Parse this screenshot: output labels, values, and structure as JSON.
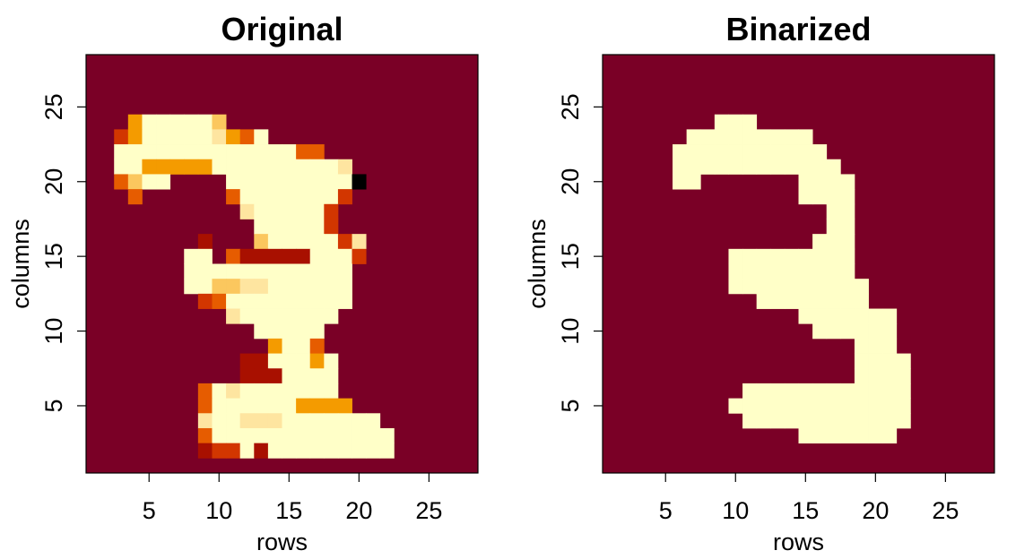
{
  "chart_data": [
    {
      "type": "heatmap",
      "title": "Original",
      "xlabel": "rows",
      "ylabel": "columns",
      "xlim": [
        0.5,
        28.5
      ],
      "ylim": [
        0.5,
        28.5
      ],
      "xticks": [
        "5",
        "10",
        "15",
        "20",
        "25"
      ],
      "yticks": [
        "5",
        "10",
        "15",
        "20",
        "25"
      ],
      "xtick_values": [
        5,
        10,
        15,
        20,
        25
      ],
      "ytick_values": [
        5,
        10,
        15,
        20,
        25
      ],
      "background_color": "#7a0026",
      "color_scale": [
        "#7a0026",
        "#a81000",
        "#d23600",
        "#e65c00",
        "#f49b00",
        "#fbc75e",
        "#fee5a0",
        "#ffffc8"
      ],
      "levels_top_row_first": [
        "",
        "",
        "",
        "   4777775",
        "  24777776437",
        "  777777777777733",
        "  77444447777777776",
        "  3577    7777777778",
        "   3      377777772",
        "           6777772",
        "            777772",
        "        1   57777726",
        "       77 3111117772",
        "       777777777777",
        "       775566777777",
        "        23777777777",
        "          67777777",
        "            77777",
        "             4773",
        "           1177747",
        "           1117777",
        "        3767777777",
        "        37777774444",
        "        6776667777777",
        "        37777777777777",
        "        12271777777777",
        "",
        ""
      ]
    },
    {
      "type": "heatmap",
      "title": "Binarized",
      "xlabel": "rows",
      "ylabel": "columns",
      "xlim": [
        0.5,
        28.5
      ],
      "ylim": [
        0.5,
        28.5
      ],
      "xticks": [
        "5",
        "10",
        "15",
        "20",
        "25"
      ],
      "yticks": [
        "5",
        "10",
        "15",
        "20",
        "25"
      ],
      "xtick_values": [
        5,
        10,
        15,
        20,
        25
      ],
      "ytick_values": [
        5,
        10,
        15,
        20,
        25
      ],
      "background_color": "#7a0026",
      "foreground_color": "#ffffc8",
      "ranges_top_row_first": [
        [],
        [],
        [],
        [
          [
            9,
            11
          ]
        ],
        [
          [
            7,
            15
          ]
        ],
        [
          [
            6,
            16
          ]
        ],
        [
          [
            6,
            17
          ]
        ],
        [
          [
            6,
            7
          ],
          [
            15,
            18
          ]
        ],
        [
          [
            15,
            18
          ]
        ],
        [
          [
            17,
            18
          ]
        ],
        [
          [
            17,
            18
          ]
        ],
        [
          [
            16,
            18
          ]
        ],
        [
          [
            10,
            18
          ]
        ],
        [
          [
            10,
            18
          ]
        ],
        [
          [
            10,
            19
          ]
        ],
        [
          [
            12,
            19
          ]
        ],
        [
          [
            15,
            21
          ]
        ],
        [
          [
            16,
            21
          ]
        ],
        [
          [
            19,
            21
          ]
        ],
        [
          [
            19,
            22
          ]
        ],
        [
          [
            19,
            22
          ]
        ],
        [
          [
            11,
            22
          ]
        ],
        [
          [
            10,
            22
          ]
        ],
        [
          [
            11,
            22
          ]
        ],
        [
          [
            15,
            21
          ]
        ],
        [],
        [],
        []
      ]
    }
  ]
}
